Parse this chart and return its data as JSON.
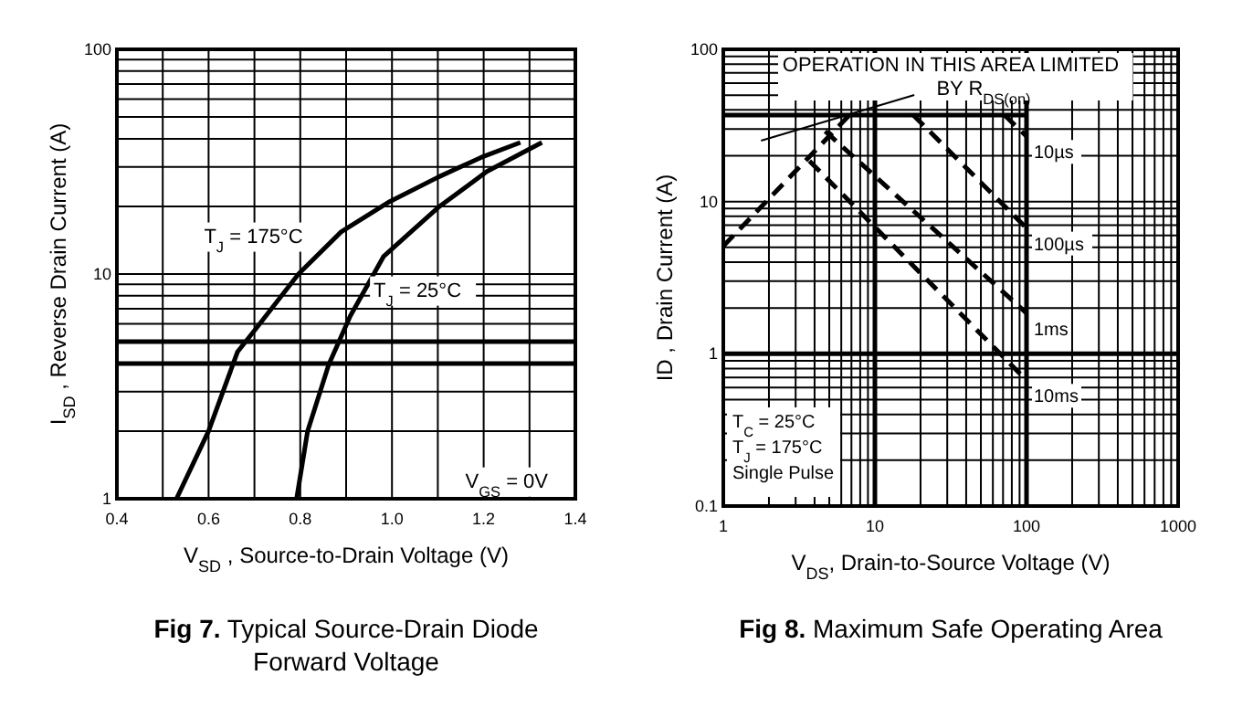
{
  "chart_data": [
    {
      "type": "line",
      "title": "Fig 7. Typical Source-Drain Diode Forward Voltage",
      "xlabel": "V$_{SD}$ , Source-to-Drain Voltage (V)",
      "ylabel": "I$_{SD}$ , Reverse Drain Current (A)",
      "log": true,
      "grid": true,
      "xlim": [
        0.4,
        1.4
      ],
      "ylim": [
        1,
        100
      ],
      "xticks": [
        0.4,
        {
          "value": 0.5,
          "label": null
        },
        0.6,
        {
          "value": 0.7,
          "label": null
        },
        0.8,
        {
          "value": 0.9,
          "label": null
        },
        {
          "value": 1,
          "label": "1.0"
        },
        {
          "value": 1.1,
          "label": null
        },
        1.2,
        {
          "value": 1.3,
          "label": null
        },
        1.4
      ],
      "yticks": [
        1,
        10,
        100
      ],
      "series": [
        {
          "color": "#000000",
          "x": [
            0.53,
            0.6,
            0.663,
            0.703,
            0.796,
            0.889,
            0.995,
            1.101,
            1.194,
            1.28
          ],
          "values": [
            1,
            2,
            4.5,
            5.7,
            10,
            15.4,
            21,
            27,
            33,
            38.5
          ]
        },
        {
          "color": "#000000",
          "x": [
            0.792,
            0.816,
            0.862,
            0.909,
            0.982,
            1.101,
            1.207,
            1.327
          ],
          "values": [
            1,
            2,
            3.95,
            6.5,
            12,
            19.8,
            28.6,
            38.5
          ]
        }
      ],
      "ref_lines": [
        {
          "axis": "y",
          "value": 5,
          "color": "#000000"
        },
        {
          "axis": "y",
          "value": 4,
          "color": "#000000"
        }
      ],
      "annotations": [
        "T$_{J}$ = 175°C",
        "T$_{J}$ = 25°C",
        "V$_{GS}$ = 0V"
      ]
    },
    {
      "type": "line",
      "title": "Fig 8. Maximum Safe Operating Area",
      "xlabel": "V$_{DS}$, Drain-to-Source Voltage (V)",
      "ylabel": "ID , Drain Current (A)",
      "log": "xy",
      "grid": true,
      "xlim": [
        1,
        1000
      ],
      "ylim": [
        0.1,
        100
      ],
      "xticks": [
        1,
        10,
        100,
        1000
      ],
      "yticks": [
        0.1,
        1,
        10,
        100
      ],
      "series": [
        {
          "color": "#000000",
          "line_style": "solid",
          "x": [
            1,
            100
          ],
          "values": [
            37,
            37
          ]
        },
        {
          "color": "#000000",
          "line_style": "dashed",
          "x": [
            1,
            6.8
          ],
          "values": [
            5.1,
            37
          ]
        },
        {
          "name": "10µs",
          "color": "#000000",
          "line_style": "dashed",
          "x": [
            71.6,
            100
          ],
          "values": [
            37,
            26.8
          ]
        },
        {
          "name": "100µs",
          "color": "#000000",
          "line_style": "dashed",
          "x": [
            17.9,
            100
          ],
          "values": [
            37,
            6.7
          ]
        },
        {
          "name": "1ms",
          "color": "#000000",
          "line_style": "dashed",
          "x": [
            4.7,
            100
          ],
          "values": [
            29,
            1.85
          ]
        },
        {
          "name": "10ms",
          "color": "#000000",
          "line_style": "dashed",
          "x": [
            3.7,
            100
          ],
          "values": [
            18.5,
            0.67
          ]
        }
      ],
      "ref_lines": [
        {
          "axis": "x",
          "value": 10,
          "color": "#000000"
        },
        {
          "axis": "x",
          "value": 100,
          "color": "#000000"
        },
        {
          "axis": "y",
          "value": 1,
          "color": "#000000"
        }
      ],
      "annotations": [
        "OPERATION IN THIS AREA LIMITED",
        "BY R$_{DS(on)}$",
        "T$_{C}$ = 25°C",
        "T$_{J}$ = 175°C",
        "Single Pulse"
      ]
    }
  ]
}
